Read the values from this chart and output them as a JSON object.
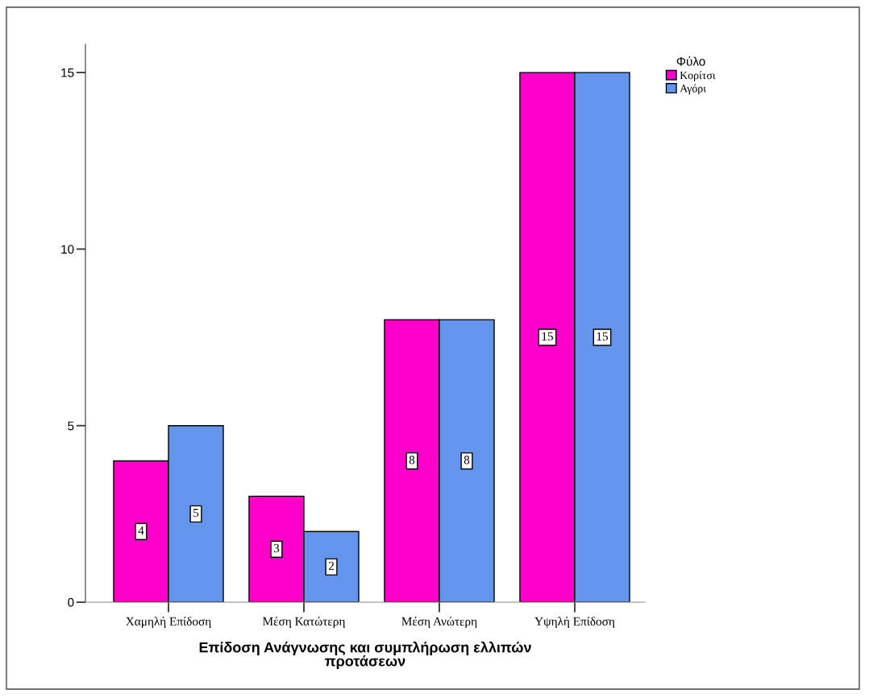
{
  "chart_data": {
    "type": "bar",
    "xlabel": "Επίδοση Ανάγνωσης και συμπλήρωση ελλιπών\nπροτάσεων",
    "legend_title": "Φύλο",
    "categories": [
      "Χαμηλή Επίδοση",
      "Μέση Κατώτερη",
      "Μέση Ανώτερη",
      "Υψηλή Επίδοση"
    ],
    "series": [
      {
        "name": "Κορίτσι",
        "color": "#ff00cc",
        "values": [
          4,
          3,
          8,
          15
        ]
      },
      {
        "name": "Αγόρι",
        "color": "#6495ed",
        "values": [
          5,
          2,
          8,
          15
        ]
      }
    ],
    "ylim": [
      0,
      15.8
    ],
    "yticks": [
      0,
      5,
      10,
      15
    ],
    "grid": false,
    "legend": "top right",
    "data_labels": true
  }
}
